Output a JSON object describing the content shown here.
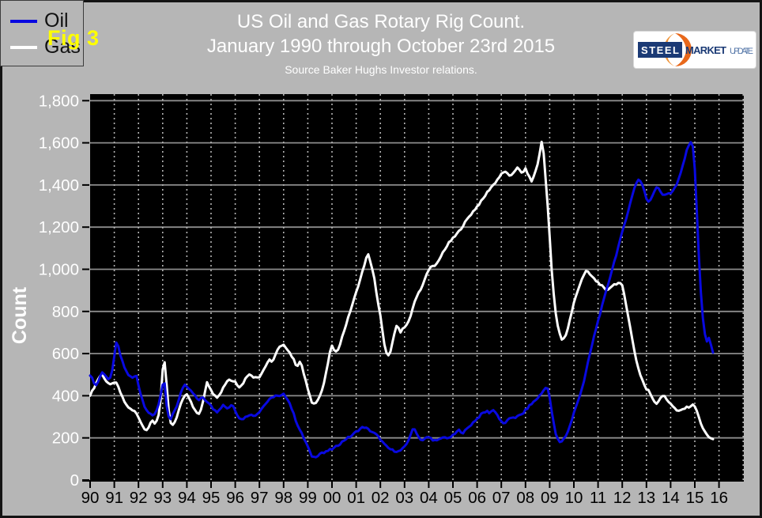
{
  "page": {
    "fig_label": "Fig 3",
    "title_line1": "US Oil and Gas Rotary Rig Count.",
    "title_line2": "January 1990 through October 23rd 2015",
    "source_line": "Source Baker Hughs Investor relations.",
    "y_axis_title": "Count"
  },
  "logo": {
    "steel": "STEEL",
    "market": "MARKET",
    "update": "UPDATE"
  },
  "colors": {
    "background": "#b6b6b6",
    "plot_background": "#000000",
    "oil_line": "#0909e0",
    "gas_line": "#ffffff",
    "fig_label": "#ffff00",
    "h_grid": "#8c8c8c",
    "v_grid": "#b3b3b3",
    "axis": "#000000",
    "x_tick_text": "#000000",
    "y_tick_text": "#ffffff",
    "logo_orange": "#e8681b",
    "logo_blue": "#1b3a75",
    "logo_update_blue": "#5577a8"
  },
  "chart_data": {
    "type": "line",
    "title": "US Oil and Gas Rotary Rig Count.",
    "subtitle": "January 1990 through October 23rd 2015",
    "source": "Source Baker Hughs Investor relations.",
    "ylabel": "Count",
    "ylim": [
      0,
      1830
    ],
    "grid": true,
    "legend_position": "upper-left-inside",
    "y_ticks": [
      0,
      200,
      400,
      600,
      800,
      1000,
      1200,
      1400,
      1600,
      1800
    ],
    "y_tick_labels": [
      "0",
      "200",
      "400",
      "600",
      "800",
      "1,000",
      "1,200",
      "1,400",
      "1,600",
      "1,800"
    ],
    "x_start_year": 1990,
    "x_end": "October 2015",
    "x_tick_labels": [
      "90",
      "91",
      "92",
      "93",
      "94",
      "95",
      "96",
      "97",
      "98",
      "99",
      "00",
      "01",
      "02",
      "03",
      "04",
      "05",
      "06",
      "07",
      "08",
      "09",
      "10",
      "11",
      "12",
      "13",
      "14",
      "15",
      "16"
    ],
    "samples_per_year": 12,
    "series": [
      {
        "name": "Oil",
        "color_key": "oil_line",
        "values": [
          500,
          482,
          462,
          450,
          468,
          494,
          510,
          505,
          492,
          478,
          482,
          520,
          590,
          648,
          632,
          592,
          562,
          535,
          515,
          500,
          490,
          485,
          490,
          495,
          452,
          412,
          380,
          352,
          335,
          320,
          310,
          305,
          315,
          332,
          362,
          405,
          448,
          455,
          352,
          298,
          288,
          310,
          332,
          352,
          380,
          412,
          440,
          452,
          446,
          436,
          426,
          415,
          400,
          386,
          380,
          386,
          392,
          382,
          372,
          366,
          356,
          340,
          328,
          325,
          336,
          346,
          356,
          350,
          341,
          346,
          356,
          350,
          331,
          312,
          296,
          288,
          292,
          298,
          305,
          311,
          308,
          305,
          309,
          316,
          326,
          338,
          350,
          362,
          372,
          381,
          389,
          396,
          401,
          398,
          396,
          401,
          406,
          398,
          385,
          364,
          339,
          312,
          285,
          261,
          239,
          219,
          199,
          179,
          158,
          133,
          114,
          109,
          112,
          118,
          125,
          131,
          128,
          133,
          139,
          143,
          146,
          151,
          158,
          166,
          173,
          181,
          189,
          196,
          201,
          206,
          213,
          221,
          229,
          236,
          243,
          249,
          251,
          246,
          240,
          234,
          228,
          221,
          215,
          204,
          194,
          181,
          169,
          159,
          151,
          146,
          142,
          139,
          137,
          136,
          140,
          148,
          156,
          171,
          192,
          217,
          237,
          240,
          224,
          204,
          194,
          189,
          195,
          201,
          203,
          198,
          192,
          188,
          185,
          191,
          197,
          201,
          206,
          199,
          196,
          206,
          211,
          219,
          229,
          236,
          230,
          225,
          233,
          243,
          253,
          263,
          273,
          283,
          291,
          301,
          311,
          319,
          323,
          326,
          320,
          326,
          331,
          325,
          309,
          291,
          276,
          268,
          273,
          281,
          289,
          296,
          299,
          297,
          301,
          306,
          311,
          319,
          331,
          341,
          353,
          361,
          371,
          379,
          389,
          399,
          411,
          426,
          441,
          434,
          388,
          328,
          268,
          218,
          194,
          181,
          185,
          196,
          211,
          231,
          256,
          286,
          318,
          344,
          374,
          404,
          436,
          470,
          512,
          556,
          600,
          640,
          680,
          720,
          755,
          790,
          825,
          860,
          895,
          930,
          965,
          1000,
          1035,
          1070,
          1105,
          1140,
          1175,
          1210,
          1245,
          1280,
          1315,
          1350,
          1385,
          1410,
          1425,
          1420,
          1400,
          1370,
          1335,
          1318,
          1330,
          1352,
          1372,
          1392,
          1386,
          1370,
          1355,
          1350,
          1356,
          1362,
          1362,
          1372,
          1386,
          1402,
          1426,
          1456,
          1492,
          1526,
          1562,
          1592,
          1605,
          1580,
          1478,
          1280,
          1060,
          890,
          768,
          690,
          660,
          676,
          640,
          600
        ]
      },
      {
        "name": "Gas",
        "color_key": "gas_line",
        "values": [
          405,
          420,
          440,
          460,
          480,
          495,
          500,
          486,
          470,
          460,
          450,
          456,
          465,
          458,
          440,
          415,
          392,
          372,
          356,
          346,
          336,
          330,
          326,
          316,
          300,
          278,
          258,
          245,
          240,
          250,
          268,
          280,
          270,
          282,
          312,
          385,
          520,
          555,
          450,
          330,
          270,
          258,
          276,
          300,
          330,
          360,
          386,
          400,
          410,
          394,
          374,
          350,
          330,
          318,
          315,
          331,
          372,
          422,
          466,
          446,
          430,
          412,
          398,
          395,
          406,
          420,
          438,
          455,
          470,
          478,
          472,
          468,
          470,
          454,
          442,
          448,
          462,
          480,
          495,
          505,
          494,
          487,
          492,
          489,
          491,
          505,
          522,
          540,
          558,
          568,
          559,
          575,
          596,
          616,
          630,
          635,
          638,
          632,
          620,
          605,
          588,
          570,
          550,
          545,
          561,
          540,
          505,
          470,
          430,
          398,
          370,
          362,
          370,
          385,
          400,
          425,
          460,
          505,
          555,
          605,
          640,
          615,
          606,
          622,
          648,
          678,
          708,
          738,
          768,
          800,
          830,
          860,
          890,
          922,
          952,
          986,
          1020,
          1052,
          1068,
          1040,
          1000,
          954,
          888,
          828,
          785,
          710,
          640,
          600,
          591,
          610,
          650,
          700,
          735,
          720,
          700,
          715,
          720,
          736,
          756,
          780,
          810,
          846,
          872,
          890,
          906,
          926,
          950,
          976,
          996,
          1010,
          1020,
          1014,
          1025,
          1040,
          1060,
          1080,
          1096,
          1110,
          1125,
          1136,
          1146,
          1156,
          1168,
          1180,
          1194,
          1208,
          1222,
          1236,
          1250,
          1262,
          1274,
          1286,
          1298,
          1310,
          1322,
          1335,
          1350,
          1365,
          1378,
          1390,
          1400,
          1412,
          1425,
          1438,
          1450,
          1458,
          1465,
          1452,
          1440,
          1448,
          1460,
          1472,
          1480,
          1470,
          1458,
          1465,
          1475,
          1458,
          1435,
          1418,
          1438,
          1468,
          1500,
          1545,
          1605,
          1550,
          1430,
          1300,
          1150,
          1000,
          880,
          790,
          730,
          695,
          668,
          672,
          690,
          720,
          760,
          800,
          840,
          870,
          900,
          930,
          955,
          975,
          990,
          985,
          975,
          965,
          955,
          945,
          938,
          930,
          920,
          908,
          897,
          905,
          915,
          922,
          928,
          932,
          934,
          930,
          920,
          880,
          830,
          775,
          720,
          665,
          615,
          570,
          530,
          500,
          475,
          450,
          430,
          425,
          408,
          390,
          372,
          365,
          375,
          392,
          400,
          395,
          382,
          372,
          365,
          352,
          340,
          330,
          325,
          330,
          336,
          340,
          344,
          348,
          352,
          355,
          352,
          330,
          295,
          268,
          245,
          228,
          218,
          205,
          196,
          190
        ]
      }
    ]
  }
}
